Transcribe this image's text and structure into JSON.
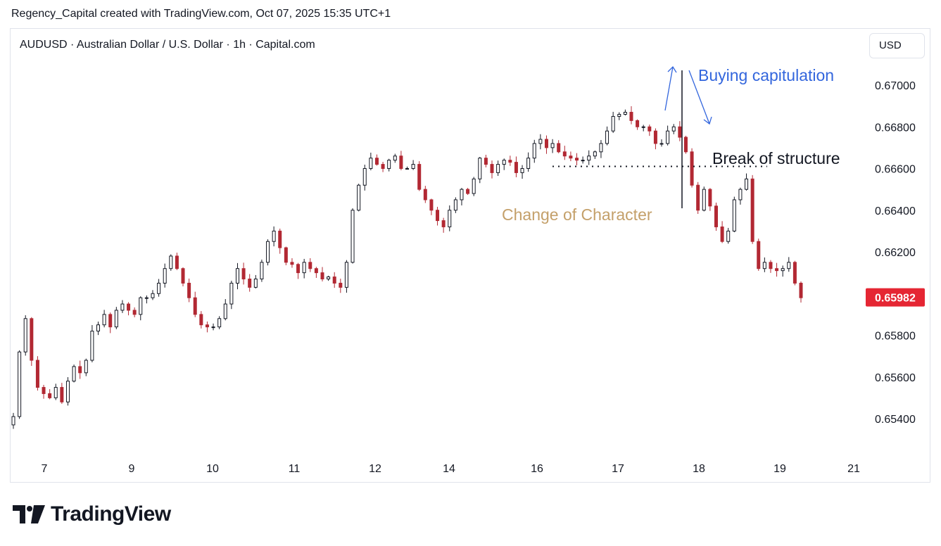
{
  "header": {
    "text": "Regency_Capital created with TradingView.com, Oct 07, 2025 15:35 UTC+1"
  },
  "symbol": {
    "text": "AUDUSD · Australian Dollar / U.S. Dollar · 1h · Capital.com"
  },
  "currency_button": {
    "label": "USD"
  },
  "logo": {
    "text": "TradingView"
  },
  "colors": {
    "up": "#26a69a",
    "down": "#b22833",
    "candle_body_up": "#ffffff",
    "price_badge": "#e52633",
    "annotation_blue": "#3366dd",
    "annotation_gold": "#c4a06a"
  },
  "chart_data": {
    "type": "candlestick",
    "symbol": "AUDUSD",
    "interval": "1h",
    "y_axis_ticks": [
      "0.67000",
      "0.66800",
      "0.66600",
      "0.66400",
      "0.66200",
      "0.65800",
      "0.65600",
      "0.65400"
    ],
    "x_axis_ticks": [
      "7",
      "9",
      "10",
      "11",
      "12",
      "14",
      "16",
      "17",
      "18",
      "19",
      "21"
    ],
    "last_price": "0.65982",
    "close_series": [
      0.6541,
      0.6572,
      0.6588,
      0.6568,
      0.6555,
      0.6552,
      0.655,
      0.6555,
      0.6548,
      0.6558,
      0.6565,
      0.6562,
      0.6568,
      0.6582,
      0.6585,
      0.659,
      0.6584,
      0.6592,
      0.6595,
      0.6592,
      0.659,
      0.6598,
      0.6598,
      0.66,
      0.6605,
      0.6612,
      0.6618,
      0.6612,
      0.6605,
      0.6598,
      0.659,
      0.6585,
      0.6584,
      0.6584,
      0.6588,
      0.6595,
      0.6605,
      0.6612,
      0.6607,
      0.6603,
      0.6607,
      0.6615,
      0.6625,
      0.663,
      0.6622,
      0.6615,
      0.6614,
      0.661,
      0.6615,
      0.6612,
      0.661,
      0.6607,
      0.6608,
      0.6605,
      0.6603,
      0.6615,
      0.664,
      0.6652,
      0.666,
      0.6665,
      0.6662,
      0.666,
      0.6664,
      0.6666,
      0.666,
      0.666,
      0.6662,
      0.665,
      0.6645,
      0.664,
      0.6635,
      0.6632,
      0.664,
      0.6645,
      0.665,
      0.6648,
      0.6655,
      0.6665,
      0.6662,
      0.6658,
      0.6662,
      0.6664,
      0.6663,
      0.6658,
      0.666,
      0.6665,
      0.6672,
      0.6674,
      0.667,
      0.6672,
      0.6668,
      0.6666,
      0.6665,
      0.6664,
      0.6664,
      0.6666,
      0.6668,
      0.6672,
      0.6678,
      0.6685,
      0.6686,
      0.6687,
      0.6683,
      0.668,
      0.668,
      0.6678,
      0.6672,
      0.6672,
      0.6678,
      0.668,
      0.6675,
      0.6668,
      0.6652,
      0.664,
      0.665,
      0.6642,
      0.6632,
      0.6625,
      0.663,
      0.6645,
      0.665,
      0.6655,
      0.6625,
      0.6612,
      0.6615,
      0.6612,
      0.6611,
      0.6612,
      0.6615,
      0.6605,
      0.6598
    ],
    "annotations": [
      {
        "text": "Buying capitulation",
        "color": "#3366dd"
      },
      {
        "text": "Break of structure",
        "color": "#131722"
      },
      {
        "text": "Change of Character",
        "color": "#c4a06a"
      }
    ],
    "break_of_structure_level": 0.6661,
    "grid": false
  }
}
